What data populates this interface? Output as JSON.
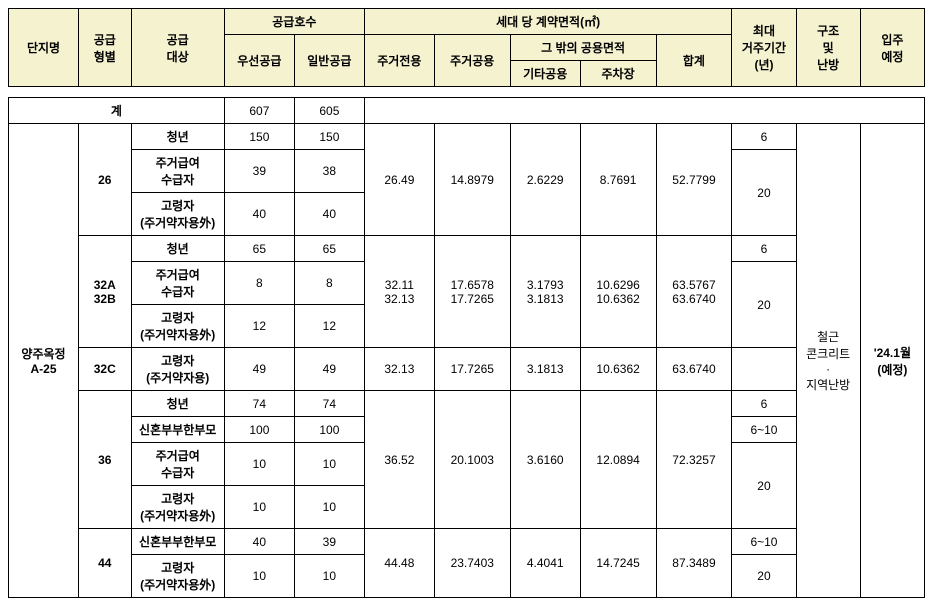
{
  "header": {
    "complexName": "단지명",
    "supplyType": "공급\n형별",
    "supplyTarget": "공급\n대상",
    "supplyUnits": "공급호수",
    "priority": "우선공급",
    "general": "일반공급",
    "contractArea": "세대 당 계약면적(㎡)",
    "exclusive": "주거전용",
    "shared": "주거공용",
    "otherCommon": "그 밖의 공용면적",
    "etcCommon": "기타공용",
    "parking": "주차장",
    "total": "합계",
    "maxPeriod": "최대\n거주기간\n(년)",
    "structure": "구조\n및\n난방",
    "moveIn": "입주\n예정"
  },
  "summary": {
    "label": "계",
    "priority": "607",
    "general": "605"
  },
  "complex": {
    "name": "양주옥정\nA-25",
    "structure": "철근\n콘크리트\n·\n지역난방",
    "moveIn": "'24.1월\n(예정)"
  },
  "groups": [
    {
      "type": "26",
      "area": {
        "excl": "26.49",
        "shared": "14.8979",
        "etc": "2.6229",
        "park": "8.7691",
        "total": "52.7799"
      },
      "rows": [
        {
          "target": "청년",
          "pri": "150",
          "gen": "150",
          "period": "6"
        },
        {
          "target": "주거급여\n수급자",
          "pri": "39",
          "gen": "38",
          "period": "20",
          "periodSpan": 2
        },
        {
          "target": "고령자\n(주거약자용外)",
          "pri": "40",
          "gen": "40"
        }
      ]
    },
    {
      "type": "32A\n32B",
      "area": {
        "excl": "32.11\n32.13",
        "shared": "17.6578\n17.7265",
        "etc": "3.1793\n3.1813",
        "park": "10.6296\n10.6362",
        "total": "63.5767\n63.6740"
      },
      "rows": [
        {
          "target": "청년",
          "pri": "65",
          "gen": "65",
          "period": "6"
        },
        {
          "target": "주거급여\n수급자",
          "pri": "8",
          "gen": "8",
          "period": "20",
          "periodSpan": 2
        },
        {
          "target": "고령자\n(주거약자용外)",
          "pri": "12",
          "gen": "12"
        }
      ]
    },
    {
      "type": "32C",
      "area": {
        "excl": "32.13",
        "shared": "17.7265",
        "etc": "3.1813",
        "park": "10.6362",
        "total": "63.6740"
      },
      "rows": [
        {
          "target": "고령자\n(주거약자용)",
          "pri": "49",
          "gen": "49",
          "period": ""
        }
      ]
    },
    {
      "type": "36",
      "area": {
        "excl": "36.52",
        "shared": "20.1003",
        "etc": "3.6160",
        "park": "12.0894",
        "total": "72.3257"
      },
      "rows": [
        {
          "target": "청년",
          "pri": "74",
          "gen": "74",
          "period": "6"
        },
        {
          "target": "신혼부부한부모",
          "pri": "100",
          "gen": "100",
          "period": "6~10"
        },
        {
          "target": "주거급여\n수급자",
          "pri": "10",
          "gen": "10",
          "period": "20",
          "periodSpan": 2
        },
        {
          "target": "고령자\n(주거약자용外)",
          "pri": "10",
          "gen": "10"
        }
      ]
    },
    {
      "type": "44",
      "area": {
        "excl": "44.48",
        "shared": "23.7403",
        "etc": "4.4041",
        "park": "14.7245",
        "total": "87.3489"
      },
      "rows": [
        {
          "target": "신혼부부한부모",
          "pri": "40",
          "gen": "39",
          "period": "6~10"
        },
        {
          "target": "고령자\n(주거약자용外)",
          "pri": "10",
          "gen": "10",
          "period": "20"
        }
      ]
    }
  ]
}
